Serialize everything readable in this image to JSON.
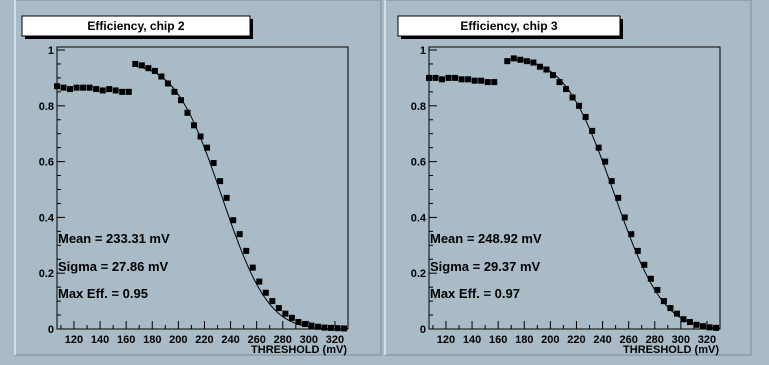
{
  "colors": {
    "background": "#a9bbc6",
    "frame": "#000000",
    "title_box": "#ffffff",
    "markers": "#000000",
    "fit_curve": "#000000"
  },
  "chart_data": [
    {
      "type": "scatter",
      "title": "Efficiency, chip 2",
      "xlabel": "THRESHOLD (mV)",
      "ylabel": "",
      "xlim": [
        107,
        330
      ],
      "ylim": [
        0,
        1
      ],
      "x_ticks": [
        "120",
        "140",
        "160",
        "180",
        "200",
        "220",
        "240",
        "260",
        "280",
        "300",
        "320"
      ],
      "y_ticks": [
        "0",
        "0.2",
        "0.4",
        "0.6",
        "0.8",
        "1"
      ],
      "grid": false,
      "legend": "none",
      "stats": [
        "Mean = 233.31 mV",
        "Sigma = 27.86 mV",
        "Max Eff. = 0.95"
      ],
      "fit": {
        "mean": 233.31,
        "sigma": 27.86,
        "max_eff": 0.95
      },
      "series": [
        {
          "x": [
            107,
            112,
            117,
            122,
            127,
            132,
            137,
            142,
            147,
            152,
            157,
            162,
            167,
            172,
            177,
            182,
            187,
            192,
            197,
            202,
            207,
            212,
            217,
            222,
            227,
            232,
            237,
            242,
            247,
            252,
            257,
            262,
            267,
            272,
            277,
            282,
            287,
            292,
            297,
            302,
            307,
            312,
            317,
            322,
            327
          ],
          "y": [
            0.87,
            0.865,
            0.86,
            0.865,
            0.865,
            0.865,
            0.86,
            0.855,
            0.86,
            0.855,
            0.85,
            0.85,
            0.95,
            0.945,
            0.935,
            0.925,
            0.905,
            0.88,
            0.85,
            0.82,
            0.775,
            0.73,
            0.69,
            0.65,
            0.595,
            0.53,
            0.47,
            0.39,
            0.34,
            0.28,
            0.22,
            0.17,
            0.13,
            0.1,
            0.075,
            0.055,
            0.04,
            0.025,
            0.018,
            0.012,
            0.008,
            0.005,
            0.004,
            0.003,
            0.002
          ]
        }
      ]
    },
    {
      "type": "scatter",
      "title": "Efficiency, chip 3",
      "xlabel": "THRESHOLD (mV)",
      "ylabel": "",
      "xlim": [
        107,
        330
      ],
      "ylim": [
        0,
        1
      ],
      "x_ticks": [
        "120",
        "140",
        "160",
        "180",
        "200",
        "220",
        "240",
        "260",
        "280",
        "300",
        "320"
      ],
      "y_ticks": [
        "0",
        "0.2",
        "0.4",
        "0.6",
        "0.8",
        "1"
      ],
      "grid": false,
      "legend": "none",
      "stats": [
        "Mean = 248.92 mV",
        "Sigma = 29.37 mV",
        "Max Eff. = 0.97"
      ],
      "fit": {
        "mean": 248.92,
        "sigma": 29.37,
        "max_eff": 0.97
      },
      "series": [
        {
          "x": [
            107,
            112,
            117,
            122,
            127,
            132,
            137,
            142,
            147,
            152,
            157,
            167,
            172,
            177,
            182,
            187,
            192,
            197,
            202,
            207,
            212,
            217,
            222,
            227,
            232,
            237,
            242,
            247,
            252,
            257,
            262,
            267,
            272,
            277,
            282,
            287,
            292,
            297,
            302,
            307,
            312,
            317,
            322,
            327
          ],
          "y": [
            0.9,
            0.9,
            0.895,
            0.9,
            0.9,
            0.895,
            0.895,
            0.89,
            0.89,
            0.885,
            0.885,
            0.96,
            0.97,
            0.965,
            0.96,
            0.955,
            0.94,
            0.93,
            0.91,
            0.885,
            0.86,
            0.83,
            0.8,
            0.76,
            0.71,
            0.65,
            0.6,
            0.53,
            0.47,
            0.4,
            0.34,
            0.28,
            0.23,
            0.18,
            0.14,
            0.1,
            0.075,
            0.055,
            0.035,
            0.025,
            0.015,
            0.01,
            0.006,
            0.004
          ]
        }
      ]
    }
  ]
}
